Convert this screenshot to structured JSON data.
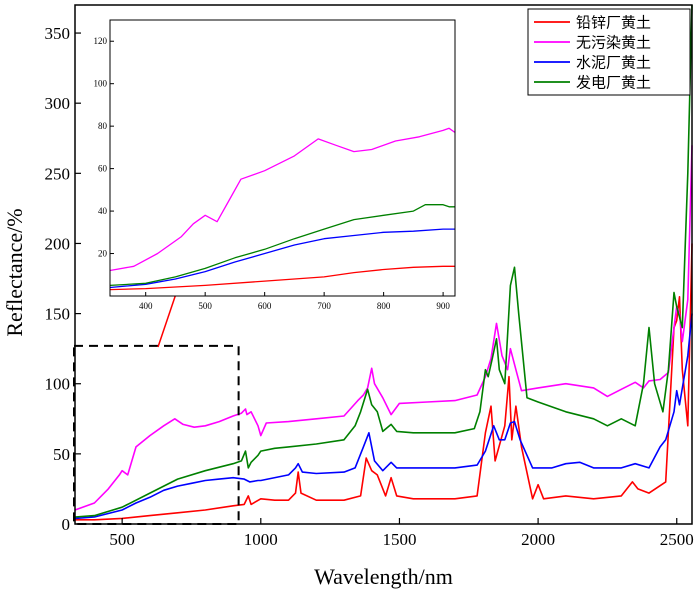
{
  "chart_data": {
    "type": "line",
    "title": "",
    "xlabel": "Wavelength/nm",
    "ylabel": "Reflectance/%",
    "xlim": [
      330,
      2555
    ],
    "ylim": [
      0,
      370
    ],
    "xticks": [
      500,
      1000,
      1500,
      2000,
      2500
    ],
    "yticks": [
      0,
      50,
      100,
      150,
      200,
      250,
      300,
      350
    ],
    "legend": "top-right",
    "series": [
      {
        "name": "铅锌厂黄土",
        "color": "#ff0000",
        "points": [
          [
            330,
            3
          ],
          [
            400,
            3
          ],
          [
            500,
            4
          ],
          [
            600,
            6
          ],
          [
            700,
            8
          ],
          [
            800,
            10
          ],
          [
            900,
            13
          ],
          [
            940,
            14
          ],
          [
            955,
            20
          ],
          [
            965,
            14
          ],
          [
            1000,
            18
          ],
          [
            1050,
            17
          ],
          [
            1100,
            17
          ],
          [
            1125,
            22
          ],
          [
            1135,
            37
          ],
          [
            1145,
            22
          ],
          [
            1200,
            17
          ],
          [
            1300,
            17
          ],
          [
            1360,
            20
          ],
          [
            1380,
            47
          ],
          [
            1400,
            38
          ],
          [
            1420,
            35
          ],
          [
            1450,
            20
          ],
          [
            1470,
            33
          ],
          [
            1490,
            20
          ],
          [
            1550,
            18
          ],
          [
            1700,
            18
          ],
          [
            1780,
            20
          ],
          [
            1810,
            65
          ],
          [
            1830,
            84
          ],
          [
            1845,
            45
          ],
          [
            1880,
            70
          ],
          [
            1895,
            105
          ],
          [
            1905,
            60
          ],
          [
            1920,
            84
          ],
          [
            1940,
            55
          ],
          [
            1980,
            18
          ],
          [
            2000,
            28
          ],
          [
            2020,
            18
          ],
          [
            2100,
            20
          ],
          [
            2200,
            18
          ],
          [
            2300,
            20
          ],
          [
            2340,
            30
          ],
          [
            2360,
            25
          ],
          [
            2400,
            22
          ],
          [
            2460,
            30
          ],
          [
            2490,
            140
          ],
          [
            2500,
            145
          ],
          [
            2510,
            162
          ],
          [
            2520,
            110
          ],
          [
            2540,
            70
          ],
          [
            2555,
            200
          ]
        ]
      },
      {
        "name": "无污染黄土",
        "color": "#ff00ff",
        "points": [
          [
            330,
            10
          ],
          [
            400,
            15
          ],
          [
            450,
            25
          ],
          [
            490,
            35
          ],
          [
            500,
            38
          ],
          [
            520,
            35
          ],
          [
            550,
            55
          ],
          [
            600,
            63
          ],
          [
            650,
            70
          ],
          [
            690,
            75
          ],
          [
            720,
            71
          ],
          [
            760,
            69
          ],
          [
            800,
            70
          ],
          [
            850,
            73
          ],
          [
            900,
            77
          ],
          [
            930,
            79
          ],
          [
            945,
            82
          ],
          [
            950,
            78
          ],
          [
            965,
            80
          ],
          [
            990,
            70
          ],
          [
            1000,
            63
          ],
          [
            1020,
            72
          ],
          [
            1100,
            73
          ],
          [
            1200,
            75
          ],
          [
            1300,
            77
          ],
          [
            1350,
            88
          ],
          [
            1370,
            92
          ],
          [
            1385,
            97
          ],
          [
            1400,
            111
          ],
          [
            1410,
            100
          ],
          [
            1440,
            90
          ],
          [
            1470,
            78
          ],
          [
            1500,
            86
          ],
          [
            1600,
            87
          ],
          [
            1700,
            88
          ],
          [
            1780,
            92
          ],
          [
            1810,
            105
          ],
          [
            1830,
            118
          ],
          [
            1850,
            143
          ],
          [
            1870,
            120
          ],
          [
            1890,
            110
          ],
          [
            1900,
            125
          ],
          [
            1920,
            110
          ],
          [
            1940,
            95
          ],
          [
            2000,
            97
          ],
          [
            2100,
            100
          ],
          [
            2200,
            97
          ],
          [
            2250,
            91
          ],
          [
            2300,
            96
          ],
          [
            2350,
            101
          ],
          [
            2380,
            97
          ],
          [
            2400,
            102
          ],
          [
            2440,
            103
          ],
          [
            2470,
            108
          ],
          [
            2490,
            140
          ],
          [
            2500,
            155
          ],
          [
            2510,
            150
          ],
          [
            2520,
            130
          ],
          [
            2540,
            160
          ],
          [
            2555,
            270
          ]
        ]
      },
      {
        "name": "水泥厂黄土",
        "color": "#0000ff",
        "points": [
          [
            330,
            4
          ],
          [
            400,
            5
          ],
          [
            500,
            10
          ],
          [
            550,
            15
          ],
          [
            600,
            19
          ],
          [
            650,
            24
          ],
          [
            700,
            27
          ],
          [
            750,
            29
          ],
          [
            800,
            31
          ],
          [
            850,
            32
          ],
          [
            900,
            33
          ],
          [
            940,
            32
          ],
          [
            960,
            30
          ],
          [
            990,
            31
          ],
          [
            1000,
            31
          ],
          [
            1100,
            35
          ],
          [
            1125,
            40
          ],
          [
            1135,
            43
          ],
          [
            1150,
            37
          ],
          [
            1200,
            36
          ],
          [
            1300,
            37
          ],
          [
            1340,
            40
          ],
          [
            1370,
            55
          ],
          [
            1390,
            65
          ],
          [
            1410,
            45
          ],
          [
            1440,
            38
          ],
          [
            1470,
            44
          ],
          [
            1490,
            40
          ],
          [
            1550,
            40
          ],
          [
            1700,
            40
          ],
          [
            1780,
            42
          ],
          [
            1810,
            52
          ],
          [
            1840,
            70
          ],
          [
            1860,
            60
          ],
          [
            1880,
            60
          ],
          [
            1900,
            72
          ],
          [
            1915,
            73
          ],
          [
            1935,
            60
          ],
          [
            1980,
            40
          ],
          [
            2050,
            40
          ],
          [
            2100,
            43
          ],
          [
            2150,
            44
          ],
          [
            2200,
            40
          ],
          [
            2300,
            40
          ],
          [
            2350,
            43
          ],
          [
            2400,
            40
          ],
          [
            2440,
            55
          ],
          [
            2460,
            60
          ],
          [
            2490,
            80
          ],
          [
            2500,
            95
          ],
          [
            2510,
            85
          ],
          [
            2540,
            120
          ],
          [
            2555,
            150
          ]
        ]
      },
      {
        "name": "发电厂黄土",
        "color": "#008000",
        "points": [
          [
            330,
            5
          ],
          [
            400,
            6
          ],
          [
            500,
            12
          ],
          [
            600,
            22
          ],
          [
            700,
            32
          ],
          [
            800,
            38
          ],
          [
            900,
            43
          ],
          [
            930,
            45
          ],
          [
            945,
            52
          ],
          [
            955,
            40
          ],
          [
            965,
            44
          ],
          [
            990,
            49
          ],
          [
            1000,
            52
          ],
          [
            1050,
            54
          ],
          [
            1100,
            55
          ],
          [
            1200,
            57
          ],
          [
            1300,
            60
          ],
          [
            1340,
            70
          ],
          [
            1360,
            80
          ],
          [
            1385,
            96
          ],
          [
            1400,
            85
          ],
          [
            1420,
            80
          ],
          [
            1440,
            66
          ],
          [
            1470,
            71
          ],
          [
            1490,
            66
          ],
          [
            1550,
            65
          ],
          [
            1700,
            65
          ],
          [
            1770,
            68
          ],
          [
            1790,
            80
          ],
          [
            1810,
            110
          ],
          [
            1820,
            105
          ],
          [
            1835,
            118
          ],
          [
            1850,
            132
          ],
          [
            1860,
            110
          ],
          [
            1880,
            100
          ],
          [
            1900,
            170
          ],
          [
            1915,
            183
          ],
          [
            1930,
            150
          ],
          [
            1960,
            90
          ],
          [
            2000,
            87
          ],
          [
            2100,
            80
          ],
          [
            2200,
            75
          ],
          [
            2250,
            70
          ],
          [
            2300,
            75
          ],
          [
            2350,
            70
          ],
          [
            2380,
            100
          ],
          [
            2400,
            140
          ],
          [
            2420,
            100
          ],
          [
            2450,
            80
          ],
          [
            2470,
            110
          ],
          [
            2490,
            165
          ],
          [
            2500,
            155
          ],
          [
            2520,
            140
          ],
          [
            2540,
            250
          ],
          [
            2555,
            370
          ]
        ]
      }
    ],
    "inset": {
      "xlim": [
        340,
        920
      ],
      "ylim": [
        0,
        130
      ],
      "xticks": [
        400,
        500,
        600,
        700,
        800,
        900
      ],
      "yticks": [
        20,
        40,
        60,
        80,
        100,
        120
      ],
      "series": [
        {
          "name": "铅锌厂黄土",
          "color": "#ff0000",
          "points": [
            [
              340,
              3
            ],
            [
              400,
              3.5
            ],
            [
              500,
              5
            ],
            [
              600,
              7
            ],
            [
              700,
              9
            ],
            [
              750,
              11
            ],
            [
              800,
              12.5
            ],
            [
              850,
              13.5
            ],
            [
              900,
              14
            ],
            [
              920,
              14
            ]
          ]
        },
        {
          "name": "无污染黄土",
          "color": "#ff00ff",
          "points": [
            [
              340,
              12
            ],
            [
              380,
              14
            ],
            [
              420,
              20
            ],
            [
              460,
              28
            ],
            [
              480,
              34
            ],
            [
              500,
              38
            ],
            [
              520,
              35
            ],
            [
              540,
              45
            ],
            [
              560,
              55
            ],
            [
              600,
              59
            ],
            [
              650,
              66
            ],
            [
              690,
              74
            ],
            [
              720,
              71
            ],
            [
              750,
              68
            ],
            [
              780,
              69
            ],
            [
              820,
              73
            ],
            [
              860,
              75
            ],
            [
              900,
              78
            ],
            [
              910,
              79
            ],
            [
              920,
              77
            ]
          ]
        },
        {
          "name": "水泥厂黄土",
          "color": "#0000ff",
          "points": [
            [
              340,
              4
            ],
            [
              400,
              5.5
            ],
            [
              450,
              8
            ],
            [
              500,
              11.5
            ],
            [
              550,
              16
            ],
            [
              600,
              20
            ],
            [
              650,
              24
            ],
            [
              700,
              27
            ],
            [
              750,
              28.5
            ],
            [
              800,
              30
            ],
            [
              850,
              30.5
            ],
            [
              900,
              31.5
            ],
            [
              920,
              31.5
            ]
          ]
        },
        {
          "name": "发电厂黄土",
          "color": "#008000",
          "points": [
            [
              340,
              5
            ],
            [
              400,
              6
            ],
            [
              450,
              9
            ],
            [
              500,
              13
            ],
            [
              550,
              18
            ],
            [
              600,
              22
            ],
            [
              650,
              27
            ],
            [
              700,
              31.5
            ],
            [
              750,
              36
            ],
            [
              800,
              38
            ],
            [
              850,
              40
            ],
            [
              870,
              43
            ],
            [
              900,
              43
            ],
            [
              910,
              42
            ],
            [
              920,
              42
            ]
          ]
        }
      ]
    }
  }
}
